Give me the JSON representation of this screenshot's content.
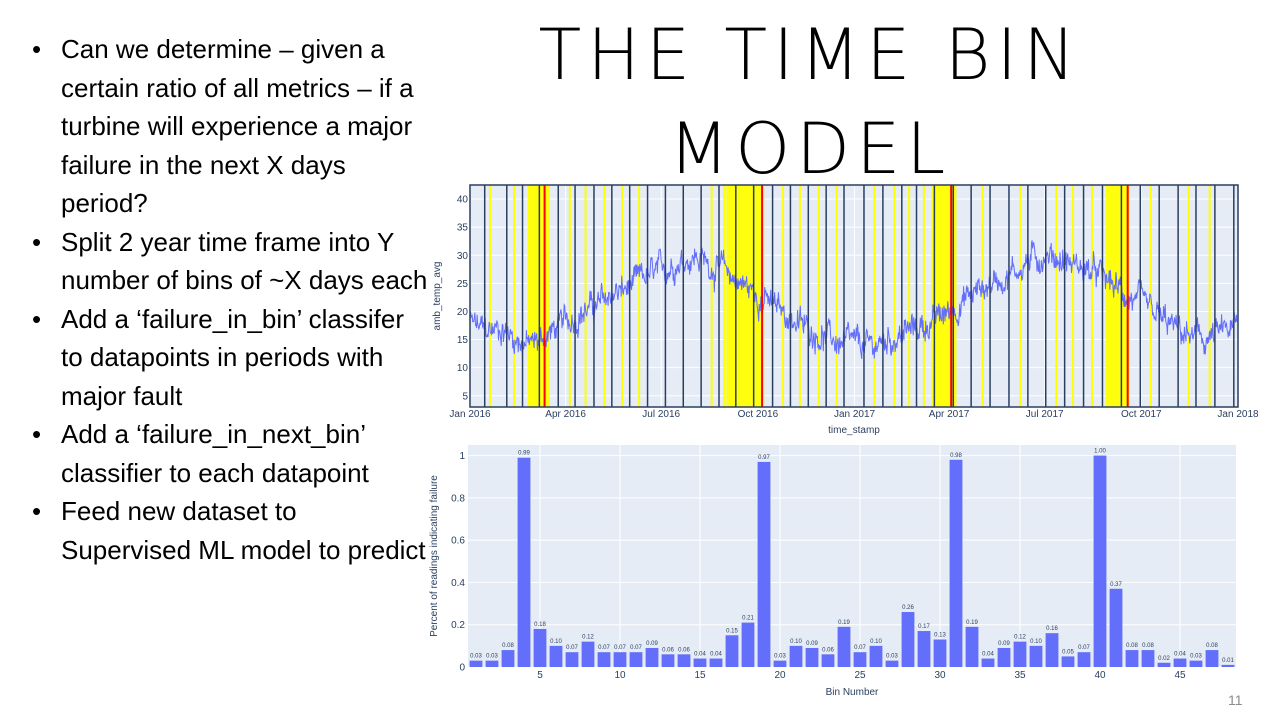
{
  "slide": {
    "title_lines": [
      "THE TIME BIN",
      "MODEL"
    ],
    "page_number": "11",
    "bullets": [
      "Can we determine  – given a certain ratio of all metrics – if a turbine will experience a major failure in the next X days period?",
      "Split 2 year time frame into Y number of bins of ~X days each",
      "Add a ‘failure_in_bin’ classifer to datapoints in periods with major fault",
      "Add a ‘failure_in_next_bin’ classifier to each datapoint",
      "Feed new dataset to Supervised ML model to predict"
    ],
    "bullet_glyph": "•"
  },
  "chart_data": [
    {
      "type": "line",
      "xlabel": "time_stamp",
      "ylabel": "amb_temp_avg",
      "xlim": [
        "2016-01-01",
        "2018-01-01"
      ],
      "ylim": [
        3,
        42.5
      ],
      "xticks": [
        {
          "date": "2016-01-01",
          "label": "Jan 2016"
        },
        {
          "date": "2016-04-01",
          "label": "Apr 2016"
        },
        {
          "date": "2016-07-01",
          "label": "Jul 2016"
        },
        {
          "date": "2016-10-01",
          "label": "Oct 2016"
        },
        {
          "date": "2017-01-01",
          "label": "Jan 2017"
        },
        {
          "date": "2017-04-01",
          "label": "Apr 2017"
        },
        {
          "date": "2017-07-01",
          "label": "Jul 2017"
        },
        {
          "date": "2017-10-01",
          "label": "Oct 2017"
        },
        {
          "date": "2018-01-01",
          "label": "Jan 2018"
        }
      ],
      "yticks": [
        5,
        10,
        15,
        20,
        25,
        30,
        35,
        40
      ],
      "grid": true,
      "colors": {
        "line": "#636efa",
        "bin_border": "#2a3f5f",
        "failure_bin": "#ffff00",
        "fault": "#ff0000",
        "plot_bg": "#e5ecf6"
      },
      "series": [
        {
          "values": [
            {
              "date": "2016-01-01",
              "y": 18
            },
            {
              "date": "2016-01-15",
              "y": 16.5
            },
            {
              "date": "2016-02-01",
              "y": 17
            },
            {
              "date": "2016-02-15",
              "y": 15
            },
            {
              "date": "2016-03-01",
              "y": 14
            },
            {
              "date": "2016-03-15",
              "y": 16
            },
            {
              "date": "2016-04-01",
              "y": 18
            },
            {
              "date": "2016-04-15",
              "y": 20
            },
            {
              "date": "2016-05-01",
              "y": 21
            },
            {
              "date": "2016-05-15",
              "y": 23
            },
            {
              "date": "2016-06-01",
              "y": 24
            },
            {
              "date": "2016-06-15",
              "y": 26
            },
            {
              "date": "2016-07-01",
              "y": 27
            },
            {
              "date": "2016-07-15",
              "y": 29
            },
            {
              "date": "2016-08-01",
              "y": 30
            },
            {
              "date": "2016-08-15",
              "y": 28.5
            },
            {
              "date": "2016-09-01",
              "y": 27
            },
            {
              "date": "2016-09-15",
              "y": 25
            },
            {
              "date": "2016-10-01",
              "y": 23
            },
            {
              "date": "2016-10-15",
              "y": 21
            },
            {
              "date": "2016-11-01",
              "y": 19
            },
            {
              "date": "2016-11-15",
              "y": 17
            },
            {
              "date": "2016-12-01",
              "y": 16
            },
            {
              "date": "2016-12-15",
              "y": 14.5
            },
            {
              "date": "2017-01-01",
              "y": 14
            },
            {
              "date": "2017-01-15",
              "y": 13.5
            },
            {
              "date": "2017-02-01",
              "y": 15
            },
            {
              "date": "2017-02-15",
              "y": 16
            },
            {
              "date": "2017-03-01",
              "y": 17
            },
            {
              "date": "2017-03-15",
              "y": 18
            },
            {
              "date": "2017-04-01",
              "y": 20
            },
            {
              "date": "2017-04-15",
              "y": 22
            },
            {
              "date": "2017-05-01",
              "y": 24
            },
            {
              "date": "2017-05-15",
              "y": 25.5
            },
            {
              "date": "2017-06-01",
              "y": 27
            },
            {
              "date": "2017-06-15",
              "y": 29
            },
            {
              "date": "2017-07-01",
              "y": 30
            },
            {
              "date": "2017-07-15",
              "y": 29.5
            },
            {
              "date": "2017-08-01",
              "y": 28
            },
            {
              "date": "2017-08-15",
              "y": 27
            },
            {
              "date": "2017-09-01",
              "y": 25
            },
            {
              "date": "2017-09-15",
              "y": 23
            },
            {
              "date": "2017-10-01",
              "y": 21
            },
            {
              "date": "2017-10-15",
              "y": 19
            },
            {
              "date": "2017-11-01",
              "y": 17
            },
            {
              "date": "2017-11-15",
              "y": 15.5
            },
            {
              "date": "2017-12-01",
              "y": 15
            },
            {
              "date": "2017-12-15",
              "y": 16
            },
            {
              "date": "2017-12-31",
              "y": 17
            }
          ]
        }
      ],
      "bin_boundaries": [
        "2016-01-15",
        "2016-02-05",
        "2016-02-20",
        "2016-03-07",
        "2016-03-25",
        "2016-04-10",
        "2016-04-28",
        "2016-05-15",
        "2016-06-01",
        "2016-06-18",
        "2016-07-05",
        "2016-07-22",
        "2016-08-08",
        "2016-08-25",
        "2016-09-10",
        "2016-09-27",
        "2016-10-15",
        "2016-11-01",
        "2016-11-18",
        "2016-12-05",
        "2016-12-22",
        "2017-01-10",
        "2017-01-28",
        "2017-02-15",
        "2017-03-01",
        "2017-03-18",
        "2017-04-05",
        "2017-04-22",
        "2017-05-10",
        "2017-05-28",
        "2017-06-15",
        "2017-07-02",
        "2017-07-20",
        "2017-08-07",
        "2017-08-25",
        "2017-09-12",
        "2017-09-30",
        "2017-10-18",
        "2017-11-05",
        "2017-11-22",
        "2017-12-10",
        "2017-12-28"
      ],
      "failure_bands": [
        {
          "start": "2016-02-25",
          "end": "2016-03-17"
        },
        {
          "start": "2016-09-01",
          "end": "2016-10-07"
        },
        {
          "start": "2017-03-15",
          "end": "2017-04-08"
        },
        {
          "start": "2017-08-28",
          "end": "2017-09-20"
        }
      ],
      "event_lines": [
        "2016-01-20",
        "2016-02-12",
        "2016-04-05",
        "2016-04-20",
        "2016-05-08",
        "2016-05-25",
        "2016-06-10",
        "2016-08-18",
        "2016-08-30",
        "2016-10-25",
        "2016-11-10",
        "2016-11-28",
        "2016-12-15",
        "2017-01-20",
        "2017-02-08",
        "2017-02-22",
        "2017-03-08",
        "2017-05-03",
        "2017-06-08",
        "2017-07-12",
        "2017-07-28",
        "2017-08-15",
        "2017-10-10",
        "2017-11-15",
        "2017-12-05"
      ],
      "fault_lines": [
        "2016-03-12",
        "2016-10-05",
        "2017-04-03",
        "2017-09-18"
      ]
    },
    {
      "type": "bar",
      "xlabel": "Bin Number",
      "ylabel": "Percent of readings indicating failure",
      "categories": [
        1,
        2,
        3,
        4,
        5,
        6,
        7,
        8,
        9,
        10,
        11,
        12,
        13,
        14,
        15,
        16,
        17,
        18,
        19,
        20,
        21,
        22,
        23,
        24,
        25,
        26,
        27,
        28,
        29,
        30,
        31,
        32,
        33,
        34,
        35,
        36,
        37,
        38,
        39,
        40,
        41,
        42,
        43,
        44,
        45,
        46,
        47,
        48
      ],
      "values": [
        0.03,
        0.03,
        0.08,
        0.99,
        0.18,
        0.1,
        0.07,
        0.12,
        0.07,
        0.07,
        0.07,
        0.09,
        0.06,
        0.06,
        0.04,
        0.04,
        0.15,
        0.21,
        0.97,
        0.03,
        0.1,
        0.09,
        0.06,
        0.19,
        0.07,
        0.1,
        0.03,
        0.26,
        0.17,
        0.13,
        0.98,
        0.19,
        0.04,
        0.09,
        0.12,
        0.1,
        0.16,
        0.05,
        0.07,
        1.0,
        0.37,
        0.08,
        0.08,
        0.02,
        0.04,
        0.03,
        0.08,
        0.01
      ],
      "data_labels": [
        "0.03",
        "0.03",
        "0.08",
        "0.99",
        "0.18",
        "0.10",
        "0.07",
        "0.12",
        "0.07",
        "0.07",
        "0.07",
        "0.09",
        "0.06",
        "0.06",
        "0.04",
        "0.04",
        "0.15",
        "0.21",
        "0.97",
        "0.03",
        "0.10",
        "0.09",
        "0.06",
        "0.19",
        "0.07",
        "0.10",
        "0.03",
        "0.26",
        "0.17",
        "0.13",
        "0.98",
        "0.19",
        "0.04",
        "0.09",
        "0.12",
        "0.10",
        "0.16",
        "0.05",
        "0.07",
        "1.00",
        "0.37",
        "0.08",
        "0.08",
        "0.02",
        "0.04",
        "0.03",
        "0.08",
        "0.01"
      ],
      "xticks": [
        5,
        10,
        15,
        20,
        25,
        30,
        35,
        40,
        45
      ],
      "yticks": [
        0,
        0.2,
        0.4,
        0.6,
        0.8,
        1
      ],
      "ytick_labels": [
        "0",
        "0.2",
        "0.4",
        "0.6",
        "0.8",
        "1"
      ],
      "ylim": [
        0,
        1.05
      ],
      "grid": true,
      "colors": {
        "bar": "#636efa",
        "plot_bg": "#e5ecf6"
      }
    }
  ]
}
